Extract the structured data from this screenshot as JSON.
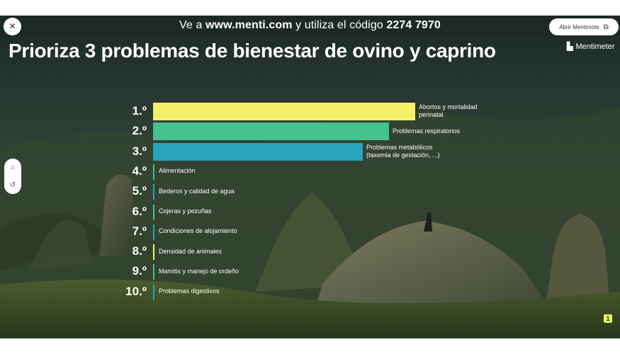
{
  "header": {
    "join_prefix": "Ve a",
    "site": "www.menti.com",
    "join_middle": "y utiliza el código",
    "code": "2274 7970",
    "close_icon": "close-icon",
    "open_button_label": "Abrir Mentimote",
    "open_icon": "external-link-icon"
  },
  "slide": {
    "title": "Prioriza 3 problemas de bienestar de ovino y caprino",
    "brand": "Mentimeter"
  },
  "side_tools": {
    "top_icon": "tag-icon",
    "bottom_icon": "history-icon"
  },
  "counter": "1",
  "colors": {
    "yellow": "#f5ef6a",
    "green": "#44c28f",
    "teal": "#2aa3bd",
    "yellow_line": "#f5ef6a",
    "green_line": "#44c28f",
    "teal_line": "#2aa3bd"
  },
  "chart_data": {
    "type": "bar",
    "orientation": "horizontal",
    "ranking": [
      {
        "rank": "1.º",
        "label": "Abortos y mortalidad perinatal",
        "label_lines": [
          "Abortos y mortalidad",
          "perinatal"
        ],
        "value": 100,
        "color": "#f5ef6a"
      },
      {
        "rank": "2.º",
        "label": "Problemas respiratorios",
        "label_lines": [
          "Problemas respiratorios"
        ],
        "value": 90,
        "color": "#44c28f"
      },
      {
        "rank": "3.º",
        "label": "Problemas metabólicos (taxemia de gestación, ...)",
        "label_lines": [
          "Problemas metabólicos",
          "(taxemia de gestación, ...)"
        ],
        "value": 80,
        "color": "#2aa3bd"
      },
      {
        "rank": "4.º",
        "label": "Alimentación",
        "label_lines": [
          "Alimentación"
        ],
        "value": 0,
        "color": "#44c28f"
      },
      {
        "rank": "5.º",
        "label": "Bederos y calidad de agua",
        "label_lines": [
          "Bederos y calidad de agua"
        ],
        "value": 0,
        "color": "#2aa3bd"
      },
      {
        "rank": "6.º",
        "label": "Cojeras y pezuñas",
        "label_lines": [
          "Cojeras y pezuñas"
        ],
        "value": 0,
        "color": "#44c28f"
      },
      {
        "rank": "7.º",
        "label": "Condiciones de alojamiento",
        "label_lines": [
          "Condiciones de alojamiento"
        ],
        "value": 0,
        "color": "#2aa3bd"
      },
      {
        "rank": "8.º",
        "label": "Densidad de animales",
        "label_lines": [
          "Densidad de animales"
        ],
        "value": 0,
        "color": "#f5ef6a"
      },
      {
        "rank": "9.º",
        "label": "Mamitis y manejo de ordeño",
        "label_lines": [
          "Mamitis y manejo de ordeño"
        ],
        "value": 0,
        "color": "#44c28f"
      },
      {
        "rank": "10.º",
        "label": "Problemas digestivos",
        "label_lines": [
          "Problemas digestivos"
        ],
        "value": 0,
        "color": "#2aa3bd"
      }
    ]
  }
}
